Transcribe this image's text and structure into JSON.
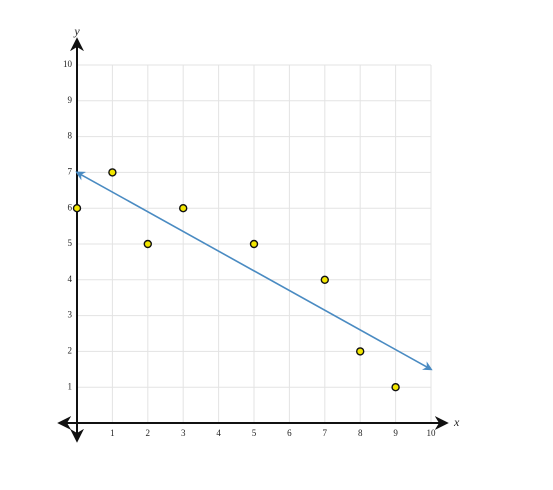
{
  "chart_data": {
    "type": "scatter",
    "x": [
      0,
      1,
      2,
      3,
      5,
      7,
      8,
      9
    ],
    "values": [
      6,
      7,
      5,
      6,
      5,
      4,
      2,
      1
    ],
    "color": "#f2e600",
    "trend": {
      "x": [
        0,
        10
      ],
      "values": [
        7,
        1.5
      ],
      "color": "#4a8bc2"
    },
    "x_label": "x",
    "y_label": "y",
    "xlim": [
      0,
      10
    ],
    "ylim": [
      0,
      10
    ],
    "xticks": [
      1,
      2,
      3,
      4,
      5,
      6,
      7,
      8,
      9,
      10
    ],
    "yticks": [
      1,
      2,
      3,
      4,
      5,
      6,
      7,
      8,
      9,
      10
    ],
    "grid": true
  }
}
